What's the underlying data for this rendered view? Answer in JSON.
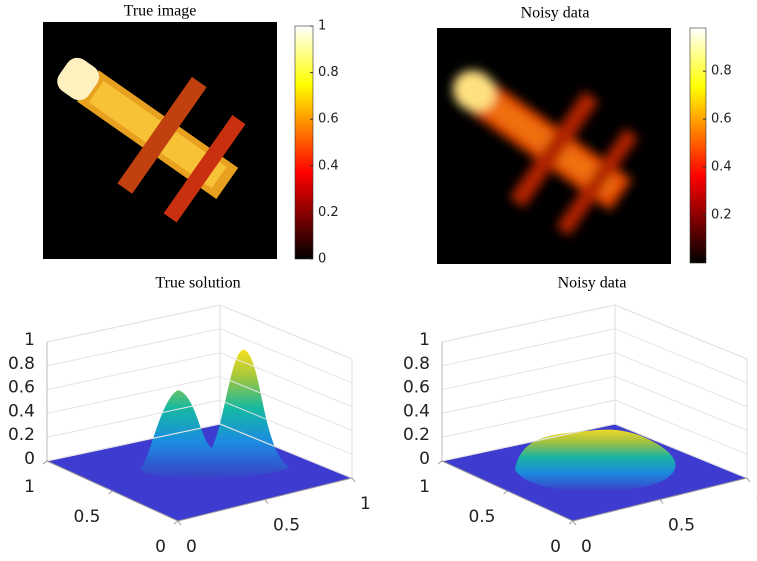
{
  "chart_data": [
    {
      "type": "image",
      "title": "True image",
      "colormap": "hot",
      "clim": [
        0,
        1
      ],
      "cticks": [
        0,
        0.2,
        0.4,
        0.6,
        0.8,
        1
      ]
    },
    {
      "type": "image",
      "title": "Noisy data",
      "colormap": "hot",
      "clim": [
        0,
        0.98
      ],
      "cticks": [
        0.2,
        0.4,
        0.6,
        0.8
      ]
    },
    {
      "type": "surface",
      "title": "True solution",
      "colormap": "parula",
      "zlim": [
        0,
        1
      ],
      "zticks": [
        0,
        0.2,
        0.4,
        0.6,
        0.8,
        1
      ],
      "xlim": [
        0,
        1
      ],
      "xticks": [
        0,
        0.5,
        1
      ],
      "ylim": [
        0,
        1
      ],
      "yticks": [
        0,
        0.5,
        1
      ],
      "grid": true
    },
    {
      "type": "surface",
      "title": "Noisy data",
      "colormap": "parula",
      "zlim": [
        0,
        1
      ],
      "zticks": [
        0,
        0.2,
        0.4,
        0.6,
        0.8,
        1
      ],
      "xlim": [
        0,
        1
      ],
      "xticks": [
        0,
        0.5,
        1
      ],
      "ylim": [
        0,
        1
      ],
      "yticks": [
        0,
        0.5,
        1
      ],
      "grid": true
    }
  ]
}
